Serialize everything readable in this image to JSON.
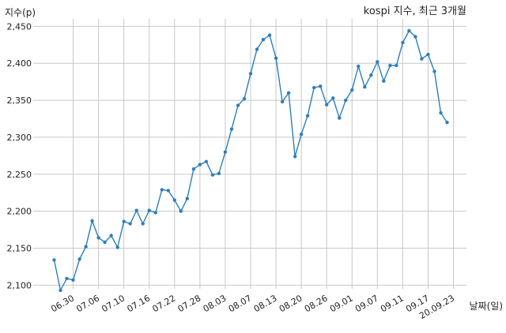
{
  "chart_data": {
    "type": "line",
    "title": "kospi 지수, 최근 3개월",
    "ylabel": "지수(p)",
    "xlabel": "날짜(일)",
    "ylim": [
      2095,
      2460
    ],
    "yticks": [
      2100,
      2150,
      2200,
      2250,
      2300,
      2350,
      2400,
      2450
    ],
    "ytick_labels": [
      "2,100",
      "2,150",
      "2,200",
      "2,250",
      "2,300",
      "2,350",
      "2,400",
      "2,450"
    ],
    "xtick_labels": [
      "06.30",
      "07.06",
      "07.10",
      "07.16",
      "07.22",
      "07.28",
      "08.03",
      "08.07",
      "08.13",
      "08.20",
      "08.26",
      "09.01",
      "09.07",
      "09.11",
      "09.17",
      "20.09.23"
    ],
    "xtick_indices": [
      3,
      7,
      11,
      15,
      19,
      23,
      27,
      31,
      35,
      39,
      43,
      47,
      51,
      55,
      59,
      63
    ],
    "grid": true,
    "color": "#2e7ebc",
    "series": [
      {
        "values": [
          2134,
          2093,
          2109,
          2107,
          2135,
          2152,
          2187,
          2164,
          2158,
          2167,
          2151,
          2186,
          2183,
          2201,
          2183,
          2201,
          2198,
          2229,
          2228,
          2215,
          2200,
          2217,
          2257,
          2263,
          2267,
          2249,
          2251,
          2280,
          2311,
          2343,
          2352,
          2386,
          2419,
          2432,
          2438,
          2407,
          2348,
          2360,
          2274,
          2304,
          2329,
          2367,
          2369,
          2344,
          2353,
          2326,
          2350,
          2364,
          2396,
          2368,
          2384,
          2402,
          2376,
          2397,
          2397,
          2428,
          2444,
          2436,
          2406,
          2412,
          2389,
          2333,
          2320
        ]
      }
    ]
  }
}
